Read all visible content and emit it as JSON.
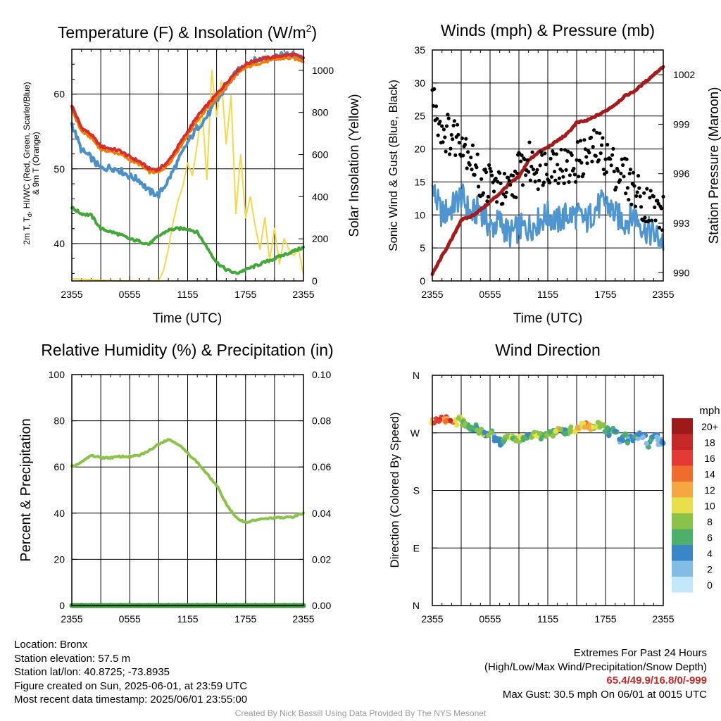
{
  "charts": {
    "temp": {
      "title": "Temperature (F) & Insolation (W/m",
      "title_sup": "2",
      "title_end": ")",
      "xlabel": "Time (UTC)",
      "ylabel_line1": "2m T, T",
      "ylabel_sub": "d",
      "ylabel_line1_end": ", HI/WC (Red, Green, Scarlet/Blue)",
      "ylabel_line2": "& 9m T (Orange)",
      "y2label": "Solar Insolation (Yellow)"
    },
    "wind": {
      "title": "Winds (mph) & Pressure (mb)",
      "xlabel": "Time (UTC)",
      "ylabel": "Sonic Wind & Gust (Blue, Black)",
      "y2label": "Station Pressure (Maroon)"
    },
    "rh": {
      "title": "Relative Humidity (%) & Precipitation (in)",
      "ylabel": "Percent & Precipitation"
    },
    "dir": {
      "title": "Wind Direction",
      "ylabel": "Direction (Colored By Speed)",
      "legend_title": "mph"
    }
  },
  "chart_data": [
    {
      "type": "line",
      "title": "Temperature (F) & Insolation (W/m2)",
      "xlabel": "Time (UTC)",
      "ylabel": "2m T, Td, HI/WC (Red, Green, Scarlet/Blue) & 9m T (Orange)",
      "y2label": "Solar Insolation (Yellow)",
      "x_ticks": [
        "2355",
        "0555",
        "1155",
        "1755",
        "2355"
      ],
      "x_hours": [
        0,
        24
      ],
      "ylim": [
        35,
        66
      ],
      "y_ticks": [
        40,
        50,
        60
      ],
      "y2lim": [
        0,
        1100
      ],
      "y2_ticks": [
        0,
        200,
        400,
        600,
        800,
        1000
      ],
      "grid": true,
      "series": [
        {
          "color": "#d32f2f",
          "axis": "left",
          "x": [
            0,
            1,
            2,
            3,
            4,
            5,
            6,
            7,
            8,
            9,
            10,
            11,
            12,
            13,
            14,
            15,
            16,
            17,
            18,
            19,
            20,
            21,
            22,
            23,
            24
          ],
          "values": [
            58.5,
            55.5,
            54.6,
            53.0,
            52.7,
            52.4,
            51.6,
            51.0,
            50.0,
            49.9,
            51.0,
            53.0,
            55.0,
            57.0,
            58.5,
            60.0,
            61.5,
            63.0,
            64.0,
            64.5,
            64.8,
            65.0,
            65.2,
            65.3,
            64.8
          ]
        },
        {
          "color": "#f57c00",
          "axis": "left",
          "x": [
            0,
            1,
            2,
            3,
            4,
            5,
            6,
            7,
            8,
            9,
            10,
            11,
            12,
            13,
            14,
            15,
            16,
            17,
            18,
            19,
            20,
            21,
            22,
            23,
            24
          ],
          "values": [
            58.0,
            55.0,
            54.2,
            52.6,
            52.3,
            52.0,
            51.2,
            50.6,
            49.6,
            49.5,
            50.6,
            52.5,
            54.5,
            56.5,
            58.0,
            59.5,
            61.0,
            62.5,
            63.5,
            64.0,
            64.3,
            64.6,
            64.8,
            64.8,
            64.4
          ]
        },
        {
          "color": "#4a90c9",
          "axis": "left",
          "x": [
            0,
            1,
            2,
            3,
            4,
            5,
            6,
            7,
            8,
            9,
            10,
            11,
            12,
            13,
            14,
            15,
            16,
            17,
            18,
            19,
            20,
            21,
            22,
            23,
            24
          ],
          "values": [
            56.0,
            52.5,
            51.5,
            50.0,
            50.2,
            49.8,
            49.0,
            48.5,
            47.0,
            46.5,
            48.5,
            51.0,
            53.5,
            55.5,
            57.0,
            59.0,
            61.0,
            62.8,
            64.0,
            64.5,
            64.8,
            65.0,
            65.2,
            65.3,
            64.8
          ]
        },
        {
          "color": "#43a83a",
          "axis": "left",
          "x": [
            0,
            1,
            2,
            3,
            4,
            5,
            6,
            7,
            8,
            9,
            10,
            11,
            12,
            13,
            14,
            15,
            16,
            17,
            18,
            19,
            20,
            21,
            22,
            23,
            24
          ],
          "values": [
            44.8,
            44.0,
            43.8,
            42.0,
            41.6,
            41.2,
            40.6,
            40.3,
            39.9,
            41.0,
            41.8,
            42.0,
            42.0,
            41.5,
            39.5,
            37.5,
            36.5,
            36.0,
            36.5,
            37.0,
            37.5,
            38.0,
            38.5,
            39.0,
            39.5
          ]
        },
        {
          "color": "#f5d84a",
          "axis": "right",
          "x": [
            0,
            5,
            9,
            9.5,
            10,
            10.5,
            11,
            11.5,
            12,
            12.5,
            13,
            13.5,
            14,
            14.5,
            15,
            15.5,
            16,
            16.5,
            17,
            17.5,
            18,
            18.5,
            19,
            19.5,
            20,
            20.5,
            21,
            21.5,
            22,
            22.5,
            23,
            23.5,
            24
          ],
          "values": [
            10,
            0,
            0,
            50,
            150,
            280,
            380,
            450,
            560,
            500,
            650,
            820,
            480,
            1000,
            780,
            950,
            650,
            880,
            320,
            600,
            300,
            400,
            260,
            150,
            300,
            100,
            250,
            80,
            200,
            150,
            120,
            150,
            30
          ]
        }
      ]
    },
    {
      "type": "line",
      "title": "Winds (mph) & Pressure (mb)",
      "xlabel": "Time (UTC)",
      "ylabel": "Sonic Wind & Gust (Blue, Black)",
      "y2label": "Station Pressure (Maroon)",
      "x_ticks": [
        "2355",
        "0555",
        "1155",
        "1755",
        "2355"
      ],
      "x_hours": [
        0,
        24
      ],
      "ylim": [
        0,
        35
      ],
      "y_ticks": [
        0,
        5,
        10,
        15,
        20,
        25,
        30,
        35
      ],
      "y2lim": [
        989.5,
        1003.5
      ],
      "y2_ticks": [
        990,
        993,
        996,
        999,
        1002
      ],
      "grid": true,
      "series": [
        {
          "color": "#a51b1b",
          "axis": "right",
          "x": [
            0,
            1,
            2,
            3,
            4,
            5,
            6,
            7,
            8,
            9,
            10,
            11,
            12,
            13,
            14,
            15,
            16,
            17,
            18,
            19,
            20,
            21,
            22,
            23,
            24
          ],
          "values": [
            989.9,
            991.0,
            992.0,
            993.2,
            993.4,
            993.8,
            994.3,
            994.8,
            995.4,
            995.8,
            996.8,
            997.3,
            997.6,
            998.0,
            998.4,
            999.1,
            999.2,
            999.5,
            999.8,
            1000.2,
            1000.7,
            1001.0,
            1001.5,
            1002.0,
            1002.5
          ]
        },
        {
          "color": "#4f95cf",
          "axis": "left",
          "x": [
            0,
            1,
            2,
            3,
            4,
            5,
            6,
            7,
            8,
            9,
            10,
            11,
            12,
            13,
            14,
            15,
            16,
            17,
            18,
            19,
            20,
            21,
            22,
            23,
            24
          ],
          "values": [
            14,
            10,
            11,
            13,
            10,
            11,
            8,
            9,
            7,
            8,
            8,
            9,
            10,
            9,
            10,
            10,
            9,
            11,
            12,
            10,
            9,
            10,
            8,
            7,
            6
          ]
        },
        {
          "color": "#000000",
          "axis": "left",
          "x": [
            0,
            1,
            2,
            3,
            4,
            5,
            6,
            7,
            8,
            9,
            10,
            11,
            12,
            13,
            14,
            15,
            16,
            17,
            18,
            19,
            20,
            21,
            22,
            23,
            24
          ],
          "values": [
            28,
            23,
            22,
            22,
            19,
            15,
            15,
            14,
            13,
            17,
            18,
            17,
            18,
            18,
            17,
            18,
            19,
            20,
            19,
            17,
            16,
            14,
            12,
            11,
            10
          ]
        }
      ]
    },
    {
      "type": "line",
      "title": "Relative Humidity (%) & Precipitation (in)",
      "ylabel": "Percent & Precipitation",
      "x_ticks": [
        "2355",
        "0555",
        "1155",
        "1755",
        "2355"
      ],
      "x_hours": [
        0,
        24
      ],
      "ylim": [
        0,
        100
      ],
      "y_ticks": [
        0,
        20,
        40,
        60,
        80,
        100
      ],
      "y2lim": [
        0,
        0.1
      ],
      "y2_ticks": [
        "0.00",
        "0.02",
        "0.04",
        "0.06",
        "0.08",
        "0.10"
      ],
      "grid": true,
      "series": [
        {
          "color": "#8bc34a",
          "axis": "left",
          "x": [
            0,
            1,
            2,
            3,
            4,
            5,
            6,
            7,
            8,
            9,
            10,
            11,
            12,
            13,
            14,
            15,
            16,
            17,
            18,
            19,
            20,
            21,
            22,
            23,
            24
          ],
          "values": [
            60,
            62,
            65,
            64,
            64,
            64.5,
            64.5,
            65,
            67,
            70,
            72,
            70,
            66,
            62,
            57,
            52,
            44,
            38,
            36,
            37,
            37.5,
            38,
            38,
            38.5,
            40
          ]
        },
        {
          "color": "#3d9a3d",
          "axis": "right",
          "x": [
            0,
            24
          ],
          "values": [
            0,
            0
          ]
        }
      ]
    },
    {
      "type": "scatter",
      "title": "Wind Direction",
      "ylabel": "Direction (Colored By Speed)",
      "x_ticks": [
        "2355",
        "0555",
        "1155",
        "1755",
        "2355"
      ],
      "x_hours": [
        0,
        24
      ],
      "y_tick_labels": [
        "N",
        "E",
        "S",
        "W",
        "N"
      ],
      "ylim": [
        0,
        360
      ],
      "grid": true,
      "legend_title": "mph",
      "legend_placement": "right",
      "color_scale": [
        {
          "label": "20+",
          "color": "#9e1a1a"
        },
        {
          "label": "18",
          "color": "#c62828"
        },
        {
          "label": "16",
          "color": "#e53935"
        },
        {
          "label": "14",
          "color": "#ef6c2e"
        },
        {
          "label": "12",
          "color": "#f5a742"
        },
        {
          "label": "10",
          "color": "#e8e04a"
        },
        {
          "label": "8",
          "color": "#8bc34a"
        },
        {
          "label": "6",
          "color": "#4caf6a"
        },
        {
          "label": "4",
          "color": "#3b86c6"
        },
        {
          "label": "2",
          "color": "#82bde6"
        },
        {
          "label": "0",
          "color": "#c3e8f9"
        }
      ],
      "points": {
        "x": [
          0.0,
          0.4,
          0.8,
          1.2,
          1.6,
          2.0,
          2.4,
          2.8,
          3.2,
          3.6,
          4.0,
          4.4,
          4.8,
          5.2,
          5.6,
          6.0,
          6.4,
          6.8,
          7.2,
          7.6,
          8.0,
          8.4,
          8.8,
          9.2,
          9.6,
          10.0,
          10.4,
          10.8,
          11.2,
          11.6,
          12.0,
          12.4,
          12.8,
          13.2,
          13.6,
          14.0,
          14.4,
          14.8,
          15.2,
          15.6,
          16.0,
          16.4,
          16.8,
          17.2,
          17.6,
          18.0,
          18.4,
          18.8,
          19.2,
          19.6,
          20.0,
          20.4,
          20.8,
          21.2,
          21.6,
          22.0,
          22.4,
          22.8,
          23.2,
          23.6,
          24.0
        ],
        "direction": [
          288,
          290,
          292,
          289,
          291,
          287,
          286,
          292,
          285,
          282,
          280,
          278,
          274,
          271,
          268,
          270,
          262,
          258,
          255,
          261,
          265,
          262,
          258,
          260,
          262,
          263,
          266,
          268,
          265,
          264,
          267,
          269,
          270,
          272,
          271,
          273,
          275,
          276,
          279,
          281,
          282,
          278,
          280,
          283,
          279,
          275,
          270,
          272,
          268,
          260,
          265,
          258,
          262,
          264,
          266,
          263,
          252,
          259,
          262,
          256,
          255
        ],
        "speed": [
          12,
          16,
          18,
          14,
          15,
          17,
          12,
          10,
          8,
          9,
          7,
          6,
          8,
          9,
          6,
          7,
          5,
          6,
          4,
          7,
          10,
          9,
          8,
          10,
          7,
          6,
          9,
          10,
          8,
          7,
          9,
          8,
          10,
          11,
          7,
          8,
          9,
          11,
          12,
          10,
          13,
          12,
          11,
          10,
          8,
          7,
          6,
          8,
          6,
          5,
          7,
          5,
          6,
          4,
          6,
          4,
          5,
          6,
          4,
          3,
          4
        ]
      }
    }
  ],
  "station": {
    "location": "Location: Bronx",
    "elevation": "Station elevation: 57.5 m",
    "latlon": "Station lat/lon: 40.8725; -73.8935",
    "created": "Figure created on Sun, 2025-06-01, at 23:59 UTC",
    "recent": "Most recent data timestamp: 2025/06/01 23:55:00"
  },
  "extremes": {
    "heading": "Extremes For Past 24 Hours",
    "subheading": "(High/Low/Max Wind/Precipitation/Snow Depth)",
    "values": "65.4/49.9/16.8/0/-999",
    "gust": "Max Gust: 30.5 mph On 06/01 at 0015 UTC"
  },
  "credit": "Created By Nick Bassill Using Data Provided By The NYS Mesonet"
}
